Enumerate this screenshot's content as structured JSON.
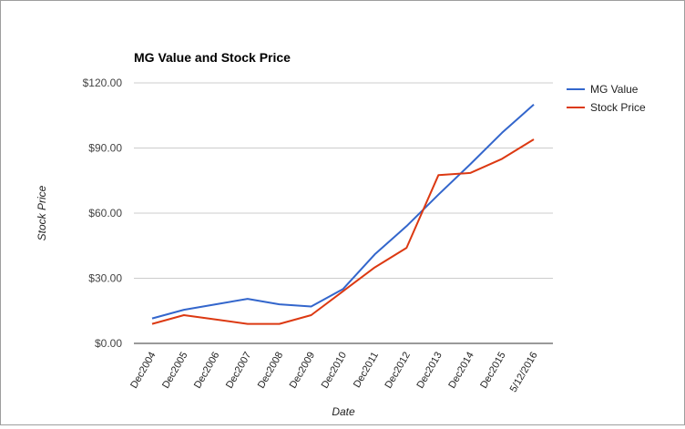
{
  "chart_data": {
    "type": "line",
    "title": "MG Value and Stock Price",
    "xlabel": "Date",
    "ylabel": "Stock Price",
    "categories": [
      "Dec2004",
      "Dec2005",
      "Dec2006",
      "Dec2007",
      "Dec2008",
      "Dec2009",
      "Dec2010",
      "Dec2011",
      "Dec2012",
      "Dec2013",
      "Dec2014",
      "Dec2015",
      "5/12/2016"
    ],
    "yticks": [
      "$0.00",
      "$30.00",
      "$60.00",
      "$90.00",
      "$120.00"
    ],
    "ylim": [
      0,
      120
    ],
    "grid": true,
    "legend_position": "right",
    "series": [
      {
        "name": "MG Value",
        "color": "#3366cc",
        "values": [
          11.5,
          15.5,
          18.0,
          20.5,
          18.0,
          17.0,
          25.0,
          41.0,
          54.0,
          68.5,
          82.5,
          97.0,
          110.0
        ]
      },
      {
        "name": "Stock Price",
        "color": "#dc3912",
        "values": [
          9.0,
          13.0,
          11.0,
          9.0,
          9.0,
          13.0,
          24.0,
          35.0,
          44.0,
          77.5,
          78.5,
          85.0,
          94.0
        ]
      }
    ]
  }
}
